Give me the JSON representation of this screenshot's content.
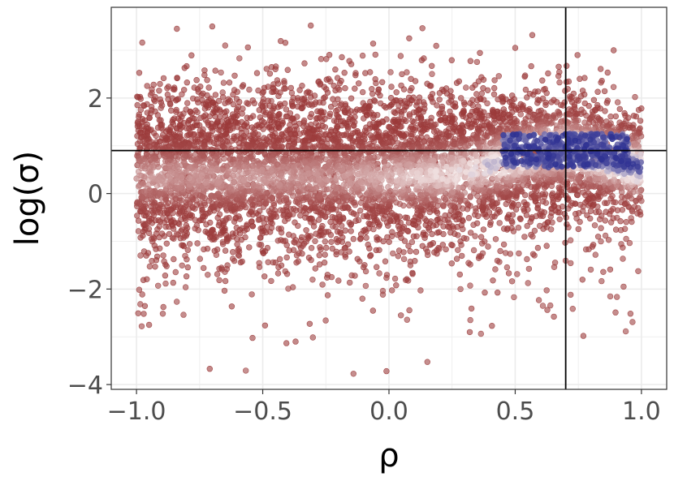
{
  "chart_data": {
    "type": "scatter",
    "title": "",
    "xlabel": "ρ",
    "ylabel": "log(σ)",
    "xlim": [
      -1.1,
      1.1
    ],
    "ylim": [
      -4.1,
      3.9
    ],
    "x_ticks": [
      -1.0,
      -0.5,
      0.0,
      0.5,
      1.0
    ],
    "x_tick_labels": [
      "−1.0",
      "−0.5",
      "0.0",
      "0.5",
      "1.0"
    ],
    "y_ticks": [
      -4,
      -2,
      0,
      2
    ],
    "y_tick_labels": [
      "−4",
      "−2",
      "0",
      "2"
    ],
    "grid": true,
    "legend": "none",
    "reference_lines": {
      "vertical_x": 0.7,
      "horizontal_y": 0.9
    },
    "colors": {
      "point_low_density": "#9b3a3a",
      "point_mid_density": "#f2e4e4",
      "point_high_density": "#2e3192",
      "grid": "#ebebeb",
      "reference_line": "#000000"
    },
    "series": [
      {
        "description_values": "approx. 6000 points, rho uniform on [-1, 1]; log(sigma) concentrated near 0.5-1.0 with a dense band peaking around rho 0.6-0.8, log(sigma) ~0.9",
        "dense_band": {
          "rho_range": [
            0.45,
            0.95
          ],
          "log_sigma_center": 0.9
        },
        "outlier_examples": [
          {
            "x": -0.84,
            "y": 3.45
          },
          {
            "x": -0.7,
            "y": 3.5
          },
          {
            "x": 0.08,
            "y": 3.25
          },
          {
            "x": -0.71,
            "y": -3.67
          },
          {
            "x": -0.01,
            "y": -3.72
          },
          {
            "x": 0.77,
            "y": -2.98
          },
          {
            "x": -0.95,
            "y": -2.75
          },
          {
            "x": 0.5,
            "y": 3.05
          },
          {
            "x": 0.89,
            "y": 3.0
          },
          {
            "x": -0.37,
            "y": -3.1
          },
          {
            "x": 0.32,
            "y": -2.9
          }
        ]
      }
    ]
  }
}
